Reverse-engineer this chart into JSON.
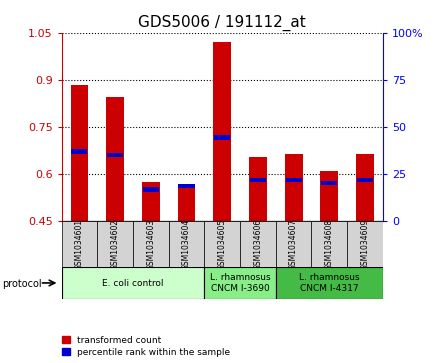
{
  "title": "GDS5006 / 191112_at",
  "samples": [
    "GSM1034601",
    "GSM1034602",
    "GSM1034603",
    "GSM1034604",
    "GSM1034605",
    "GSM1034606",
    "GSM1034607",
    "GSM1034608",
    "GSM1034609"
  ],
  "transformed_count": [
    0.885,
    0.845,
    0.575,
    0.565,
    1.02,
    0.655,
    0.665,
    0.61,
    0.665
  ],
  "percentile_rank": [
    0.665,
    0.655,
    0.545,
    0.555,
    0.71,
    0.575,
    0.575,
    0.565,
    0.575
  ],
  "ylim_left": [
    0.45,
    1.05
  ],
  "ylim_right": [
    0,
    100
  ],
  "yticks_left": [
    0.45,
    0.6,
    0.75,
    0.9,
    1.05
  ],
  "yticks_right": [
    0,
    25,
    50,
    75,
    100
  ],
  "ytick_labels_left": [
    "0.45",
    "0.6",
    "0.75",
    "0.9",
    "1.05"
  ],
  "ytick_labels_right": [
    "0",
    "25",
    "50",
    "75",
    "100%"
  ],
  "bar_color_red": "#CC0000",
  "bar_color_blue": "#0000CC",
  "bar_width": 0.5,
  "baseline": 0.45,
  "groups": [
    {
      "label": "E. coli control",
      "indices": [
        0,
        1,
        2,
        3
      ],
      "color": "#CCFFCC"
    },
    {
      "label": "L. rhamnosus\nCNCM I-3690",
      "indices": [
        4,
        5
      ],
      "color": "#88EE88"
    },
    {
      "label": "L. rhamnosus\nCNCM I-4317",
      "indices": [
        6,
        7,
        8
      ],
      "color": "#44BB44"
    }
  ],
  "legend_red": "transformed count",
  "legend_blue": "percentile rank within the sample",
  "protocol_label": "protocol",
  "title_fontsize": 11,
  "tick_fontsize": 8,
  "label_fontsize": 7,
  "sample_bg": "#D3D3D3"
}
